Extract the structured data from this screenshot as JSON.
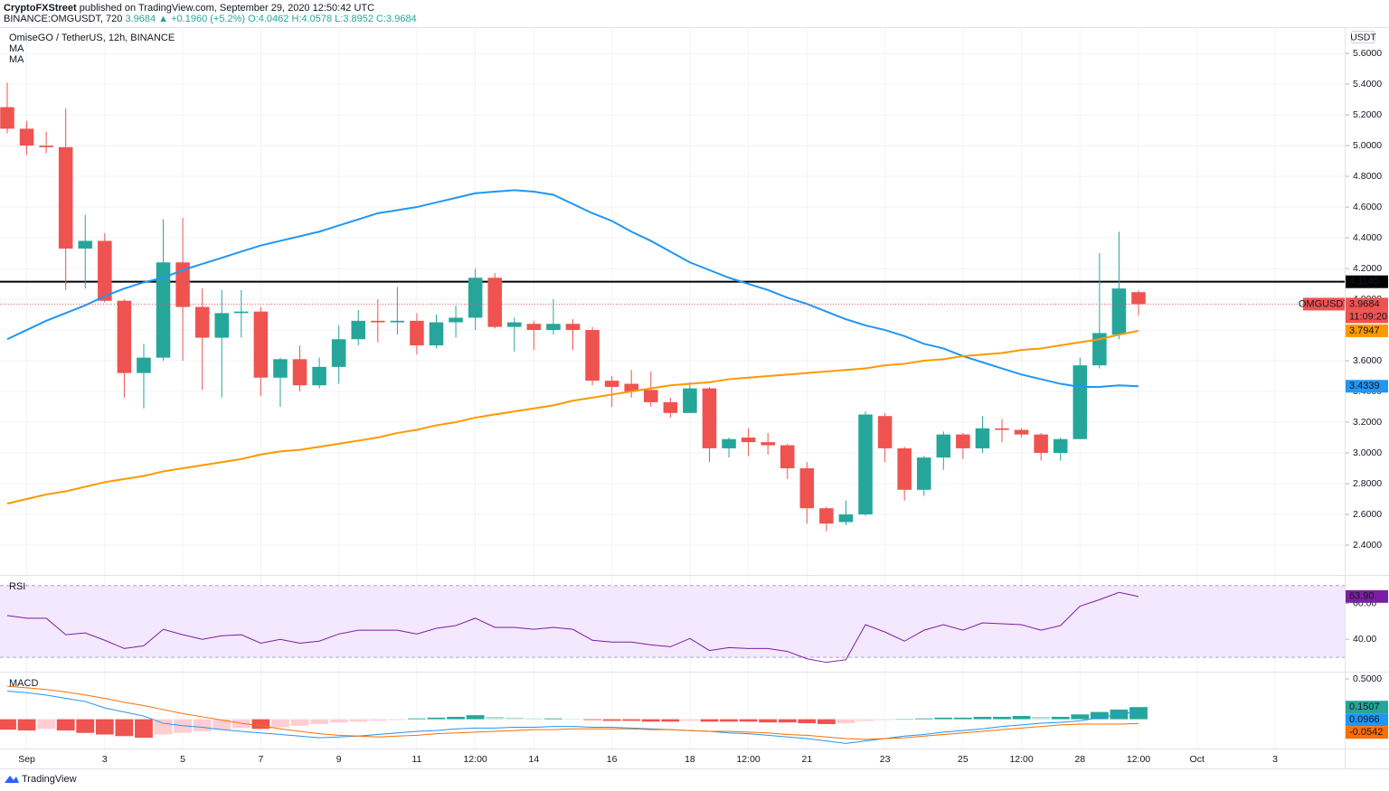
{
  "header": {
    "author": "CryptoFXStreet",
    "published": "published on TradingView.com, September 29, 2020 12:50:42 UTC",
    "symbol": "BINANCE:OMGUSDT, 720",
    "quote": "3.9684 ▲ +0.1960 (+5.2%)",
    "ohlc": "O:4.0462 H:4.0578 L:3.8952 C:3.9684"
  },
  "footer": {
    "brand": "TradingView"
  },
  "chart_data": [
    {
      "type": "candlestick",
      "title": "OmiseGO / TetherUS, 12h, BINANCE",
      "unit": "USDT",
      "symbol_label": "OMGUSDT",
      "countdown": "11:09:20",
      "up_color": "#26a69a",
      "down_color": "#ef5350",
      "open": [
        5.25,
        5.11,
        5.0,
        4.99,
        4.33,
        4.38,
        3.99,
        3.52,
        3.62,
        4.24,
        3.95,
        3.75,
        3.91,
        3.92,
        3.49,
        3.61,
        3.44,
        3.56,
        3.74,
        3.86,
        3.85,
        3.86,
        3.7,
        3.85,
        3.88,
        4.14,
        3.82,
        3.84,
        3.8,
        3.84,
        3.8,
        3.47,
        3.45,
        3.41,
        3.33,
        3.26,
        3.42,
        3.03,
        3.1,
        3.07,
        3.05,
        2.9,
        2.64,
        2.55,
        2.6,
        3.24,
        3.03,
        2.76,
        2.97,
        3.12,
        3.03,
        3.16,
        3.15,
        3.12,
        3.0,
        3.09,
        3.57,
        3.77,
        4.0462
      ],
      "high": [
        5.41,
        5.16,
        5.09,
        5.24,
        4.55,
        4.43,
        4.0,
        3.71,
        4.52,
        4.53,
        4.07,
        4.06,
        4.06,
        3.95,
        3.62,
        3.7,
        3.62,
        3.83,
        3.93,
        4.0,
        4.08,
        3.91,
        3.9,
        3.96,
        4.2,
        4.17,
        3.88,
        3.86,
        4.0,
        3.87,
        3.82,
        3.5,
        3.54,
        3.53,
        3.36,
        3.46,
        3.43,
        3.1,
        3.16,
        3.13,
        3.06,
        2.94,
        2.65,
        2.69,
        3.27,
        3.26,
        3.04,
        2.98,
        3.14,
        3.13,
        3.24,
        3.22,
        3.16,
        3.13,
        3.1,
        3.62,
        4.3,
        4.44,
        4.0578
      ],
      "low": [
        5.08,
        4.94,
        4.95,
        4.06,
        4.07,
        3.98,
        3.36,
        3.29,
        3.6,
        3.6,
        3.41,
        3.36,
        3.75,
        3.37,
        3.3,
        3.4,
        3.42,
        3.45,
        3.7,
        3.72,
        3.77,
        3.64,
        3.68,
        3.75,
        3.8,
        3.81,
        3.66,
        3.67,
        3.77,
        3.67,
        3.44,
        3.3,
        3.36,
        3.3,
        3.23,
        3.26,
        2.94,
        2.97,
        2.98,
        2.99,
        2.83,
        2.54,
        2.49,
        2.53,
        2.59,
        2.94,
        2.69,
        2.72,
        2.89,
        2.96,
        3.0,
        3.07,
        3.1,
        2.95,
        2.95,
        3.09,
        3.55,
        3.74,
        3.8952
      ],
      "close": [
        5.11,
        5.0,
        4.99,
        4.33,
        4.38,
        3.99,
        3.52,
        3.62,
        4.24,
        3.95,
        3.75,
        3.91,
        3.92,
        3.49,
        3.61,
        3.44,
        3.56,
        3.74,
        3.86,
        3.85,
        3.86,
        3.7,
        3.85,
        3.88,
        4.14,
        3.82,
        3.85,
        3.8,
        3.84,
        3.8,
        3.47,
        3.43,
        3.4,
        3.33,
        3.26,
        3.42,
        3.03,
        3.09,
        3.07,
        3.05,
        2.9,
        2.64,
        2.54,
        2.6,
        3.25,
        3.03,
        2.76,
        2.97,
        3.12,
        3.03,
        3.16,
        3.15,
        3.12,
        3.0,
        3.09,
        3.57,
        3.78,
        4.07,
        3.9684
      ],
      "series": [
        {
          "name": "MA",
          "color": "#2196f3",
          "values": [
            3.74,
            3.8,
            3.86,
            3.91,
            3.96,
            4.02,
            4.07,
            4.11,
            4.14,
            4.19,
            4.23,
            4.27,
            4.31,
            4.35,
            4.38,
            4.41,
            4.44,
            4.48,
            4.52,
            4.56,
            4.58,
            4.6,
            4.63,
            4.66,
            4.69,
            4.7,
            4.71,
            4.7,
            4.68,
            4.62,
            4.56,
            4.51,
            4.44,
            4.38,
            4.31,
            4.24,
            4.19,
            4.14,
            4.1,
            4.06,
            4.01,
            3.97,
            3.92,
            3.87,
            3.83,
            3.8,
            3.76,
            3.71,
            3.68,
            3.63,
            3.59,
            3.55,
            3.51,
            3.48,
            3.45,
            3.43,
            3.43,
            3.44,
            3.4339
          ]
        },
        {
          "name": "MA",
          "color": "#ff9800",
          "values": [
            2.67,
            2.7,
            2.73,
            2.75,
            2.78,
            2.81,
            2.83,
            2.85,
            2.88,
            2.9,
            2.92,
            2.94,
            2.96,
            2.99,
            3.01,
            3.02,
            3.04,
            3.06,
            3.08,
            3.1,
            3.13,
            3.15,
            3.18,
            3.2,
            3.23,
            3.25,
            3.27,
            3.29,
            3.31,
            3.34,
            3.36,
            3.38,
            3.4,
            3.42,
            3.44,
            3.45,
            3.46,
            3.48,
            3.49,
            3.5,
            3.51,
            3.52,
            3.53,
            3.54,
            3.55,
            3.57,
            3.58,
            3.6,
            3.61,
            3.63,
            3.64,
            3.65,
            3.67,
            3.68,
            3.7,
            3.72,
            3.74,
            3.77,
            3.7947
          ]
        }
      ],
      "hline": {
        "value": 4.114,
        "label": "4.1140",
        "color": "#000000"
      },
      "xlim": [
        -0.37,
        68.57
      ],
      "xticks": [
        {
          "value": 1,
          "label": "Sep"
        },
        {
          "value": 5,
          "label": "3"
        },
        {
          "value": 9,
          "label": "5"
        },
        {
          "value": 13,
          "label": "7"
        },
        {
          "value": 17,
          "label": "9"
        },
        {
          "value": 21,
          "label": "11"
        },
        {
          "value": 24,
          "label": "12:00"
        },
        {
          "value": 27,
          "label": "14"
        },
        {
          "value": 31,
          "label": "16"
        },
        {
          "value": 35,
          "label": "18"
        },
        {
          "value": 38,
          "label": "12:00"
        },
        {
          "value": 41,
          "label": "21"
        },
        {
          "value": 45,
          "label": "23"
        },
        {
          "value": 49,
          "label": "25"
        },
        {
          "value": 52,
          "label": "12:00"
        },
        {
          "value": 55,
          "label": "28"
        },
        {
          "value": 58,
          "label": "12:00"
        },
        {
          "value": 61,
          "label": "Oct"
        },
        {
          "value": 65,
          "label": "3"
        }
      ],
      "ylim": [
        2.206,
        5.771
      ],
      "yticks": [
        {
          "value": 2.4,
          "label": "2.4000"
        },
        {
          "value": 2.6,
          "label": "2.6000"
        },
        {
          "value": 2.8,
          "label": "2.8000"
        },
        {
          "value": 3.0,
          "label": "3.0000"
        },
        {
          "value": 3.2,
          "label": "3.2000"
        },
        {
          "value": 3.4,
          "label": "3.4000"
        },
        {
          "value": 3.6,
          "label": "3.6000"
        },
        {
          "value": 3.8,
          "label": "3.8000"
        },
        {
          "value": 4.0,
          "label": "4.0000"
        },
        {
          "value": 4.2,
          "label": "4.2000"
        },
        {
          "value": 4.4,
          "label": "4.4000"
        },
        {
          "value": 4.6,
          "label": "4.6000"
        },
        {
          "value": 4.8,
          "label": "4.8000"
        },
        {
          "value": 5.0,
          "label": "5.0000"
        },
        {
          "value": 5.2,
          "label": "5.2000"
        },
        {
          "value": 5.4,
          "label": "5.4000"
        },
        {
          "value": 5.6,
          "label": "5.6000"
        }
      ],
      "grid": true
    },
    {
      "type": "line",
      "title": "RSI",
      "color": "#7b1fa2",
      "band": [
        30,
        70
      ],
      "band_color": "#f3e8fd",
      "values": [
        53.3,
        51.8,
        51.8,
        42.6,
        43.6,
        39.5,
        34.9,
        36.4,
        45.6,
        42.6,
        40.0,
        42.0,
        42.6,
        37.9,
        40.0,
        37.9,
        39.0,
        43.0,
        45.1,
        45.1,
        45.1,
        43.0,
        46.2,
        47.7,
        51.8,
        46.7,
        46.7,
        45.6,
        46.7,
        45.6,
        39.5,
        38.5,
        38.5,
        36.9,
        35.9,
        40.5,
        33.8,
        35.4,
        34.9,
        34.9,
        33.3,
        29.2,
        27.2,
        28.7,
        48.2,
        44.1,
        39.0,
        45.1,
        48.2,
        45.1,
        49.2,
        48.7,
        48.2,
        45.1,
        47.7,
        58.5,
        62.1,
        66.2,
        63.9
      ],
      "last_label": "63.90",
      "ylim": [
        22,
        75.4
      ],
      "yticks": [
        {
          "value": 40,
          "label": "40.00"
        },
        {
          "value": 60,
          "label": "60.00"
        }
      ]
    },
    {
      "type": "macd",
      "title": "MACD",
      "histogram": {
        "colors": {
          "up_strong": "#26a69a",
          "up_weak": "#b2dfdb",
          "down_strong": "#ef5350",
          "down_weak": "#ffcdd2"
        },
        "values": [
          -0.13,
          -0.14,
          -0.12,
          -0.14,
          -0.17,
          -0.19,
          -0.21,
          -0.23,
          -0.19,
          -0.17,
          -0.15,
          -0.13,
          -0.11,
          -0.12,
          -0.1,
          -0.08,
          -0.06,
          -0.04,
          -0.03,
          -0.02,
          -0.01,
          0.01,
          0.02,
          0.03,
          0.05,
          0.03,
          0.02,
          0.01,
          0.01,
          0.0,
          -0.01,
          -0.02,
          -0.02,
          -0.03,
          -0.03,
          -0.02,
          -0.03,
          -0.03,
          -0.03,
          -0.04,
          -0.04,
          -0.05,
          -0.06,
          -0.05,
          -0.02,
          -0.01,
          0.0,
          0.01,
          0.02,
          0.02,
          0.03,
          0.03,
          0.04,
          0.03,
          0.03,
          0.06,
          0.09,
          0.12,
          0.1507
        ]
      },
      "series": [
        {
          "name": "MACD",
          "color": "#2196f3",
          "values": [
            0.35,
            0.33,
            0.3,
            0.26,
            0.22,
            0.14,
            0.09,
            0.04,
            -0.05,
            -0.08,
            -0.1,
            -0.13,
            -0.15,
            -0.17,
            -0.19,
            -0.21,
            -0.23,
            -0.22,
            -0.21,
            -0.19,
            -0.17,
            -0.15,
            -0.14,
            -0.12,
            -0.11,
            -0.11,
            -0.1,
            -0.1,
            -0.09,
            -0.09,
            -0.1,
            -0.1,
            -0.11,
            -0.12,
            -0.13,
            -0.14,
            -0.15,
            -0.17,
            -0.18,
            -0.2,
            -0.22,
            -0.24,
            -0.27,
            -0.3,
            -0.27,
            -0.24,
            -0.21,
            -0.19,
            -0.16,
            -0.14,
            -0.12,
            -0.09,
            -0.07,
            -0.05,
            -0.04,
            -0.02,
            0.02,
            0.06,
            0.0966
          ]
        },
        {
          "name": "Signal",
          "color": "#ff6d00",
          "values": [
            0.41,
            0.39,
            0.37,
            0.34,
            0.3,
            0.26,
            0.21,
            0.17,
            0.12,
            0.07,
            0.03,
            -0.01,
            -0.05,
            -0.08,
            -0.12,
            -0.15,
            -0.18,
            -0.2,
            -0.21,
            -0.22,
            -0.21,
            -0.2,
            -0.18,
            -0.17,
            -0.16,
            -0.15,
            -0.14,
            -0.13,
            -0.13,
            -0.12,
            -0.12,
            -0.12,
            -0.12,
            -0.13,
            -0.13,
            -0.14,
            -0.15,
            -0.15,
            -0.16,
            -0.17,
            -0.19,
            -0.2,
            -0.22,
            -0.24,
            -0.25,
            -0.24,
            -0.23,
            -0.21,
            -0.19,
            -0.17,
            -0.15,
            -0.13,
            -0.11,
            -0.09,
            -0.07,
            -0.06,
            -0.06,
            -0.06,
            -0.0542
          ]
        }
      ],
      "ylim": [
        -0.364,
        0.58
      ],
      "yticks": [
        {
          "value": 0.5,
          "label": "0.5000"
        }
      ]
    }
  ]
}
